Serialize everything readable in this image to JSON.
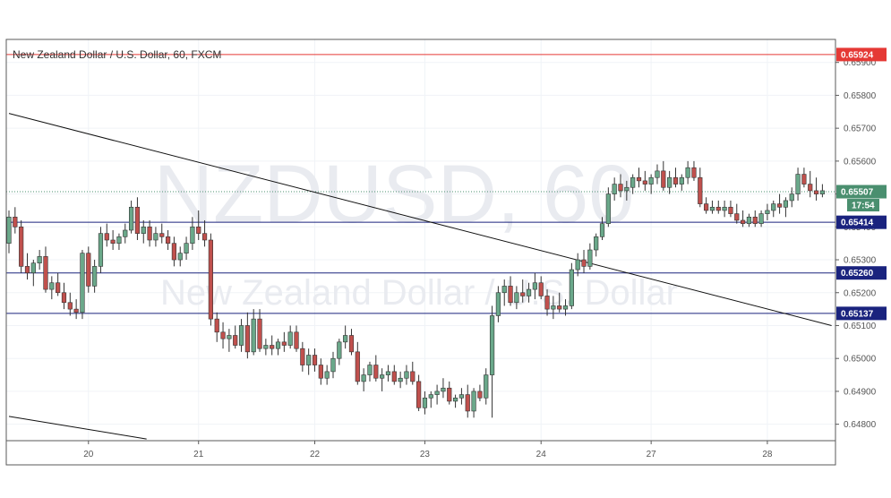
{
  "chart_data": {
    "type": "candlestick",
    "title": "New Zealand Dollar / U.S. Dollar, 60, FXCM",
    "watermark": {
      "symbol": "NZDUSD, 60",
      "name": "New Zealand Dollar / U.S. Dollar"
    },
    "ylim": [
      0.6475,
      0.6597
    ],
    "y_ticks": [
      "0.64800",
      "0.64900",
      "0.65000",
      "0.65100",
      "0.65200",
      "0.65300",
      "0.65400",
      "0.65500",
      "0.65600",
      "0.65700",
      "0.65800",
      "0.65900"
    ],
    "x_ticks": [
      {
        "label": "20",
        "index": 13
      },
      {
        "label": "21",
        "index": 31
      },
      {
        "label": "22",
        "index": 50
      },
      {
        "label": "23",
        "index": 68
      },
      {
        "label": "24",
        "index": 87
      },
      {
        "label": "27",
        "index": 105
      },
      {
        "label": "28",
        "index": 124
      }
    ],
    "horizontal_levels": [
      {
        "value": 0.65924,
        "label": "0.65924",
        "color": "#e53935"
      },
      {
        "value": 0.65414,
        "label": "0.65414",
        "color": "#1a237e"
      },
      {
        "value": 0.6526,
        "label": "0.65260",
        "color": "#1a237e"
      },
      {
        "value": 0.65137,
        "label": "0.65137",
        "color": "#1a237e"
      }
    ],
    "current_price": {
      "value": 0.65507,
      "label": "0.65507",
      "countdown": "17:54",
      "color": "#4a8f6f"
    },
    "trendlines": [
      {
        "from": {
          "index": 0,
          "value": 0.65745
        },
        "to": {
          "index": 134.5,
          "value": 0.651
        }
      },
      {
        "from": {
          "index": 0,
          "value": 0.64824
        },
        "to": {
          "index": 22.5,
          "value": 0.64755
        }
      }
    ],
    "colors": {
      "up": "#6aa88a",
      "down": "#c0504d",
      "wick": "#333333",
      "grid": "#f0f3f7"
    },
    "candles": [
      [
        0.6535,
        0.6545,
        0.6532,
        0.6543
      ],
      [
        0.6543,
        0.6546,
        0.6538,
        0.654
      ],
      [
        0.654,
        0.6542,
        0.6526,
        0.6528
      ],
      [
        0.6528,
        0.6532,
        0.6524,
        0.6526
      ],
      [
        0.6526,
        0.653,
        0.6522,
        0.6529
      ],
      [
        0.6529,
        0.6533,
        0.6527,
        0.6531
      ],
      [
        0.6531,
        0.6534,
        0.652,
        0.6521
      ],
      [
        0.6521,
        0.6525,
        0.6518,
        0.6523
      ],
      [
        0.6523,
        0.6526,
        0.6519,
        0.652
      ],
      [
        0.652,
        0.6523,
        0.6515,
        0.6517
      ],
      [
        0.6517,
        0.652,
        0.6513,
        0.6515
      ],
      [
        0.6515,
        0.6518,
        0.6512,
        0.6514
      ],
      [
        0.6514,
        0.6533,
        0.6512,
        0.6532
      ],
      [
        0.6532,
        0.6534,
        0.652,
        0.6522
      ],
      [
        0.6522,
        0.653,
        0.652,
        0.6528
      ],
      [
        0.6528,
        0.654,
        0.6526,
        0.6538
      ],
      [
        0.6538,
        0.6541,
        0.6534,
        0.6536
      ],
      [
        0.6536,
        0.6539,
        0.6533,
        0.6535
      ],
      [
        0.6535,
        0.6538,
        0.6533,
        0.6537
      ],
      [
        0.6537,
        0.6541,
        0.6535,
        0.6539
      ],
      [
        0.6539,
        0.6548,
        0.6538,
        0.6546
      ],
      [
        0.6546,
        0.6549,
        0.6536,
        0.6538
      ],
      [
        0.6538,
        0.6542,
        0.6535,
        0.654
      ],
      [
        0.654,
        0.6542,
        0.6534,
        0.6536
      ],
      [
        0.6536,
        0.654,
        0.6534,
        0.6538
      ],
      [
        0.6538,
        0.6541,
        0.6535,
        0.6537
      ],
      [
        0.6537,
        0.6539,
        0.6533,
        0.6535
      ],
      [
        0.6535,
        0.6537,
        0.6528,
        0.653
      ],
      [
        0.653,
        0.6534,
        0.6528,
        0.6532
      ],
      [
        0.6532,
        0.6537,
        0.653,
        0.6535
      ],
      [
        0.6535,
        0.6543,
        0.6533,
        0.654
      ],
      [
        0.654,
        0.6545,
        0.6536,
        0.6538
      ],
      [
        0.6538,
        0.6542,
        0.6534,
        0.6536
      ],
      [
        0.6536,
        0.6538,
        0.651,
        0.6512
      ],
      [
        0.6512,
        0.6514,
        0.6505,
        0.6508
      ],
      [
        0.6508,
        0.6511,
        0.6503,
        0.6506
      ],
      [
        0.6506,
        0.6509,
        0.6502,
        0.6507
      ],
      [
        0.6507,
        0.651,
        0.6503,
        0.6504
      ],
      [
        0.6504,
        0.6512,
        0.6502,
        0.651
      ],
      [
        0.651,
        0.6514,
        0.65,
        0.6502
      ],
      [
        0.6502,
        0.6515,
        0.6501,
        0.6512
      ],
      [
        0.6512,
        0.6515,
        0.6502,
        0.6503
      ],
      [
        0.6503,
        0.6506,
        0.6501,
        0.6504
      ],
      [
        0.6504,
        0.6507,
        0.6501,
        0.6503
      ],
      [
        0.6503,
        0.6506,
        0.6501,
        0.6505
      ],
      [
        0.6505,
        0.6508,
        0.6502,
        0.6504
      ],
      [
        0.6504,
        0.651,
        0.6503,
        0.6508
      ],
      [
        0.6508,
        0.651,
        0.6502,
        0.6503
      ],
      [
        0.6503,
        0.6505,
        0.6496,
        0.6498
      ],
      [
        0.6498,
        0.6503,
        0.6495,
        0.6501
      ],
      [
        0.6501,
        0.6503,
        0.6496,
        0.6498
      ],
      [
        0.6498,
        0.65,
        0.6492,
        0.6494
      ],
      [
        0.6494,
        0.6498,
        0.6492,
        0.6496
      ],
      [
        0.6496,
        0.6502,
        0.6494,
        0.65
      ],
      [
        0.65,
        0.6506,
        0.6498,
        0.6505
      ],
      [
        0.6505,
        0.651,
        0.6503,
        0.6507
      ],
      [
        0.6507,
        0.6509,
        0.6501,
        0.6502
      ],
      [
        0.6502,
        0.6505,
        0.6492,
        0.6493
      ],
      [
        0.6493,
        0.6497,
        0.649,
        0.6495
      ],
      [
        0.6495,
        0.6499,
        0.6493,
        0.6498
      ],
      [
        0.6498,
        0.6501,
        0.6493,
        0.6494
      ],
      [
        0.6494,
        0.6497,
        0.649,
        0.6495
      ],
      [
        0.6495,
        0.6498,
        0.6493,
        0.6496
      ],
      [
        0.6496,
        0.6498,
        0.6492,
        0.6493
      ],
      [
        0.6493,
        0.6496,
        0.6491,
        0.6494
      ],
      [
        0.6494,
        0.6498,
        0.6492,
        0.6496
      ],
      [
        0.6496,
        0.6499,
        0.6492,
        0.6493
      ],
      [
        0.6493,
        0.6495,
        0.6484,
        0.6485
      ],
      [
        0.6485,
        0.649,
        0.6483,
        0.6488
      ],
      [
        0.6488,
        0.649,
        0.6485,
        0.6489
      ],
      [
        0.6489,
        0.6492,
        0.6486,
        0.649
      ],
      [
        0.649,
        0.6494,
        0.6488,
        0.6491
      ],
      [
        0.6491,
        0.6493,
        0.6486,
        0.6487
      ],
      [
        0.6487,
        0.6489,
        0.6485,
        0.6488
      ],
      [
        0.6488,
        0.6491,
        0.6486,
        0.6489
      ],
      [
        0.6489,
        0.6492,
        0.6482,
        0.6484
      ],
      [
        0.6484,
        0.6491,
        0.6482,
        0.649
      ],
      [
        0.649,
        0.6492,
        0.6487,
        0.6488
      ],
      [
        0.6488,
        0.6497,
        0.6486,
        0.6495
      ],
      [
        0.6495,
        0.6516,
        0.6482,
        0.6513
      ],
      [
        0.6513,
        0.6522,
        0.6511,
        0.652
      ],
      [
        0.652,
        0.6524,
        0.6516,
        0.6522
      ],
      [
        0.6522,
        0.6525,
        0.6516,
        0.6517
      ],
      [
        0.6517,
        0.6522,
        0.6515,
        0.652
      ],
      [
        0.652,
        0.6524,
        0.6517,
        0.6519
      ],
      [
        0.6519,
        0.6523,
        0.6517,
        0.6521
      ],
      [
        0.6521,
        0.6526,
        0.6518,
        0.6523
      ],
      [
        0.6523,
        0.6525,
        0.6518,
        0.6519
      ],
      [
        0.6519,
        0.6521,
        0.6513,
        0.6515
      ],
      [
        0.6515,
        0.6519,
        0.6512,
        0.6516
      ],
      [
        0.6516,
        0.652,
        0.6514,
        0.6515
      ],
      [
        0.6515,
        0.6518,
        0.6513,
        0.6516
      ],
      [
        0.6516,
        0.6529,
        0.6515,
        0.6527
      ],
      [
        0.6527,
        0.6532,
        0.6525,
        0.653
      ],
      [
        0.653,
        0.6533,
        0.6526,
        0.6528
      ],
      [
        0.6528,
        0.6535,
        0.6527,
        0.6533
      ],
      [
        0.6533,
        0.6538,
        0.6531,
        0.6537
      ],
      [
        0.6537,
        0.6543,
        0.6536,
        0.6541
      ],
      [
        0.6541,
        0.6552,
        0.654,
        0.655
      ],
      [
        0.655,
        0.6555,
        0.6548,
        0.6553
      ],
      [
        0.6553,
        0.6556,
        0.6549,
        0.6551
      ],
      [
        0.6551,
        0.6554,
        0.6548,
        0.6552
      ],
      [
        0.6552,
        0.6556,
        0.655,
        0.6555
      ],
      [
        0.6555,
        0.6558,
        0.6552,
        0.6554
      ],
      [
        0.6554,
        0.6557,
        0.6551,
        0.6553
      ],
      [
        0.6553,
        0.6556,
        0.655,
        0.6555
      ],
      [
        0.6555,
        0.6559,
        0.6553,
        0.6557
      ],
      [
        0.6557,
        0.656,
        0.6551,
        0.6552
      ],
      [
        0.6552,
        0.6557,
        0.655,
        0.6555
      ],
      [
        0.6555,
        0.6558,
        0.6552,
        0.6553
      ],
      [
        0.6553,
        0.6556,
        0.6551,
        0.6555
      ],
      [
        0.6555,
        0.656,
        0.6553,
        0.6558
      ],
      [
        0.6558,
        0.656,
        0.6554,
        0.6555
      ],
      [
        0.6555,
        0.6558,
        0.6546,
        0.6547
      ],
      [
        0.6547,
        0.6549,
        0.6544,
        0.6545
      ],
      [
        0.6545,
        0.6548,
        0.6544,
        0.6546
      ],
      [
        0.6546,
        0.6548,
        0.6544,
        0.6545
      ],
      [
        0.6545,
        0.6548,
        0.6543,
        0.6546
      ],
      [
        0.6546,
        0.6548,
        0.6543,
        0.6544
      ],
      [
        0.6544,
        0.6547,
        0.6541,
        0.6542
      ],
      [
        0.6542,
        0.6545,
        0.654,
        0.6541
      ],
      [
        0.6541,
        0.6544,
        0.654,
        0.6543
      ],
      [
        0.6543,
        0.6545,
        0.654,
        0.6541
      ],
      [
        0.6541,
        0.6545,
        0.654,
        0.6544
      ],
      [
        0.6544,
        0.6547,
        0.6542,
        0.6545
      ],
      [
        0.6545,
        0.6548,
        0.6543,
        0.6547
      ],
      [
        0.6547,
        0.655,
        0.6544,
        0.6546
      ],
      [
        0.6546,
        0.6549,
        0.6543,
        0.6548
      ],
      [
        0.6548,
        0.6552,
        0.6546,
        0.655
      ],
      [
        0.655,
        0.6558,
        0.6548,
        0.6556
      ],
      [
        0.6556,
        0.6558,
        0.6552,
        0.6553
      ],
      [
        0.6553,
        0.6557,
        0.6549,
        0.6551
      ],
      [
        0.6551,
        0.6555,
        0.6548,
        0.655
      ],
      [
        0.655,
        0.6553,
        0.6549,
        0.6551
      ]
    ]
  }
}
